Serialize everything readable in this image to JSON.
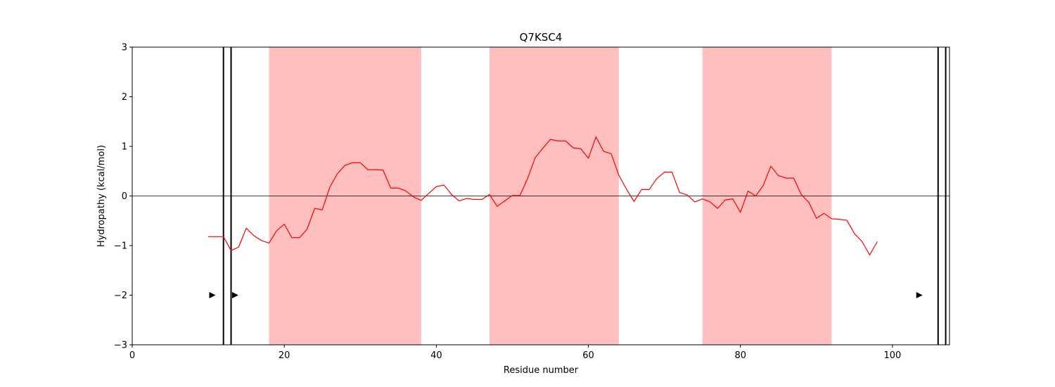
{
  "chart_data": {
    "type": "line",
    "title": "Q7KSC4",
    "xlabel": "Residue number",
    "ylabel": "Hydropathy (kcal/mol)",
    "xlim": [
      0,
      107.5
    ],
    "ylim": [
      -3,
      3
    ],
    "xticks": [
      0,
      20,
      40,
      60,
      80,
      100
    ],
    "yticks": [
      3,
      2,
      1,
      0,
      -1,
      -2,
      -3
    ],
    "xtick_labels": [
      "0",
      "20",
      "40",
      "60",
      "80",
      "100"
    ],
    "ytick_labels": [
      "3",
      "2",
      "1",
      "0",
      "−1",
      "−2",
      "−3"
    ],
    "grid": false,
    "zero_line": 0,
    "series": [
      {
        "color": "#ff0000",
        "x": [
          10,
          11,
          12,
          13,
          14,
          15,
          16,
          17,
          18,
          19,
          20,
          21,
          22,
          23,
          24,
          25,
          26,
          27,
          28,
          29,
          30,
          31,
          32,
          33,
          34,
          35,
          36,
          37,
          38,
          39,
          40,
          41,
          42,
          43,
          44,
          45,
          46,
          47,
          48,
          49,
          50,
          51,
          52,
          53,
          54,
          55,
          56,
          57,
          58,
          59,
          60,
          61,
          62,
          63,
          64,
          65,
          66,
          67,
          68,
          69,
          70,
          71,
          72,
          73,
          74,
          75,
          76,
          77,
          78,
          79,
          80,
          81,
          82,
          83,
          84,
          85,
          86,
          87,
          88,
          89,
          90,
          91,
          92,
          93,
          94,
          95,
          96,
          97,
          98
        ],
        "y": [
          -0.82,
          -0.82,
          -0.82,
          -1.1,
          -1.03,
          -0.65,
          -0.8,
          -0.9,
          -0.95,
          -0.7,
          -0.57,
          -0.84,
          -0.84,
          -0.67,
          -0.25,
          -0.28,
          0.18,
          0.45,
          0.62,
          0.67,
          0.67,
          0.53,
          0.53,
          0.52,
          0.16,
          0.16,
          0.1,
          -0.02,
          -0.09,
          0.05,
          0.19,
          0.22,
          0.03,
          -0.1,
          -0.05,
          -0.07,
          -0.07,
          0.03,
          -0.21,
          -0.1,
          0.01,
          0.01,
          0.35,
          0.77,
          0.96,
          1.14,
          1.11,
          1.11,
          0.97,
          0.95,
          0.76,
          1.19,
          0.9,
          0.85,
          0.42,
          0.14,
          -0.11,
          0.13,
          0.13,
          0.35,
          0.48,
          0.48,
          0.07,
          0.02,
          -0.12,
          -0.06,
          -0.12,
          -0.25,
          -0.08,
          -0.06,
          -0.33,
          0.1,
          0.0,
          0.21,
          0.6,
          0.41,
          0.36,
          0.36,
          0.03,
          -0.13,
          -0.45,
          -0.35,
          -0.46,
          -0.47,
          -0.49,
          -0.76,
          -0.92,
          -1.19,
          -0.92
        ]
      }
    ],
    "shaded_regions": [
      {
        "start": 18,
        "end": 38,
        "color": "#ffbfbf"
      },
      {
        "start": 47,
        "end": 64,
        "color": "#ffbfbf"
      },
      {
        "start": 75,
        "end": 92,
        "color": "#ffbfbf"
      }
    ],
    "vertical_lines": [
      12,
      13,
      106,
      107
    ],
    "markers": [
      {
        "x": 10.5,
        "y": -2,
        "shape": "triangle-right"
      },
      {
        "x": 13.5,
        "y": -2,
        "shape": "triangle-right"
      },
      {
        "x": 103.5,
        "y": -2,
        "shape": "triangle-right"
      }
    ]
  }
}
